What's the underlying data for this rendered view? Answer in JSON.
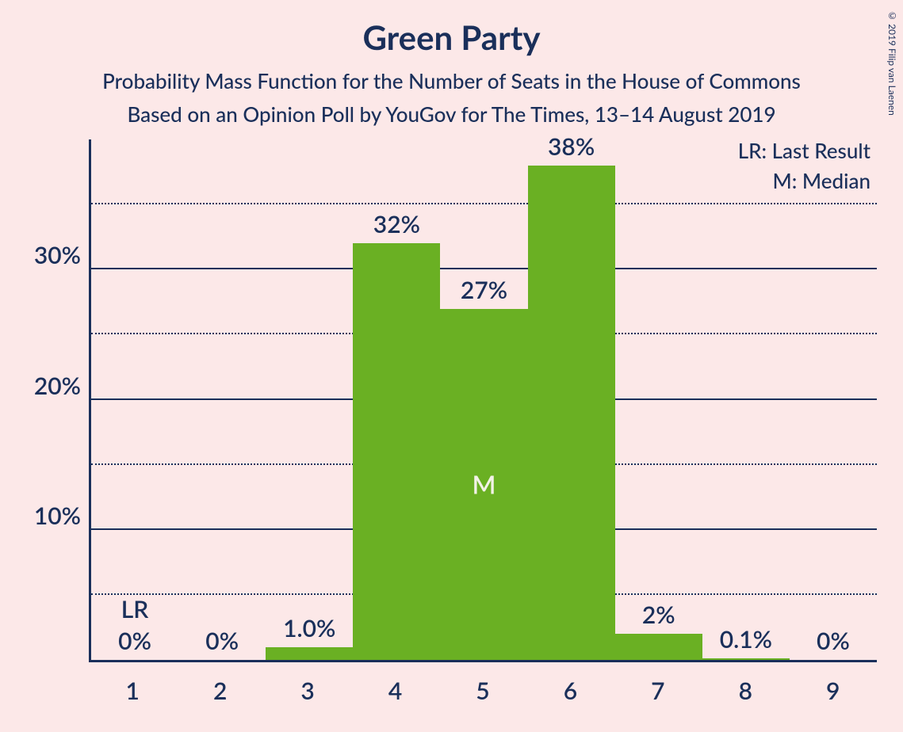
{
  "copyright": "© 2019 Filip van Laenen",
  "title": "Green Party",
  "subtitle1": "Probability Mass Function for the Number of Seats in the House of Commons",
  "subtitle2": "Based on an Opinion Poll by YouGov for The Times, 13–14 August 2019",
  "legend": {
    "lr": "LR: Last Result",
    "m": "M: Median"
  },
  "chart": {
    "type": "bar",
    "bar_color": "#6ab023",
    "text_color": "#1a2f5a",
    "background_color": "#fce8e8",
    "axis_color": "#1a2f5a",
    "grid_color": "#1a2f5a",
    "median_text_color": "#f2f2e6",
    "y_max": 40,
    "y_major_ticks": [
      10,
      20,
      30
    ],
    "y_minor_ticks": [
      5,
      15,
      25,
      35
    ],
    "y_tick_labels": [
      "10%",
      "20%",
      "30%"
    ],
    "categories": [
      "1",
      "2",
      "3",
      "4",
      "5",
      "6",
      "7",
      "8",
      "9"
    ],
    "values": [
      0,
      0,
      1.0,
      32,
      27,
      38,
      2,
      0.1,
      0
    ],
    "value_labels": [
      "0%",
      "0%",
      "1.0%",
      "32%",
      "27%",
      "38%",
      "2%",
      "0.1%",
      "0%"
    ],
    "lr_index": 0,
    "lr_label": "LR",
    "median_index": 4,
    "median_label": "M",
    "title_fontsize": 42,
    "subtitle_fontsize": 26,
    "axis_fontsize": 30,
    "value_fontsize": 30,
    "legend_fontsize": 26
  }
}
